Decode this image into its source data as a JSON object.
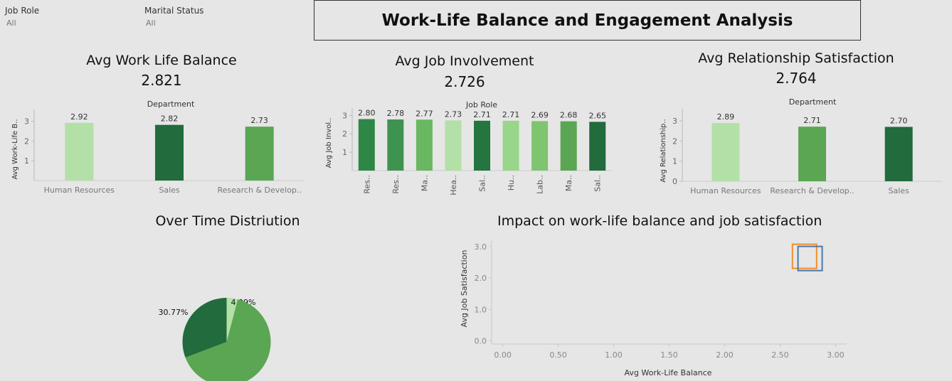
{
  "filters": {
    "job_role": {
      "label": "Job Role",
      "value": "All"
    },
    "marital_status": {
      "label": "Marital Status",
      "value": "All"
    }
  },
  "header": {
    "title": "Work-Life Balance and Engagement Analysis"
  },
  "kpis": {
    "work_life": {
      "title": "Avg Work Life Balance",
      "value": "2.821"
    },
    "job_involvement": {
      "title": "Avg Job Involvement",
      "value": "2.726"
    },
    "relationship": {
      "title": "Avg Relationship Satisfaction",
      "value": "2.764"
    }
  },
  "sections": {
    "overtime_title": "Over Time Distriution",
    "impact_title": "Impact on work-life balance and job satisfaction"
  },
  "colors": {
    "lightest": "#b3e0a6",
    "light": "#98d68a",
    "mid_light": "#7fc46f",
    "mid": "#6ab761",
    "medium": "#5aa652",
    "medium_dark": "#3f9350",
    "dark": "#2e8746",
    "darker": "#247540",
    "darkest": "#216b3d",
    "orange": "#f28e2b",
    "blue": "#4e79a7"
  },
  "chart_data": [
    {
      "id": "wlb",
      "type": "bar",
      "header": "Department",
      "ylabel": "Avg Work-Life B..",
      "categories": [
        "Human Resources",
        "Sales",
        "Research & Develop.."
      ],
      "values": [
        2.92,
        2.82,
        2.73
      ],
      "labels": [
        "2.92",
        "2.82",
        "2.73"
      ],
      "yticks": [
        1,
        2,
        3
      ],
      "ylim": [
        0,
        3.6
      ],
      "colors": [
        "#b3e0a6",
        "#216b3d",
        "#5aa652"
      ]
    },
    {
      "id": "ji",
      "type": "bar",
      "header": "Job Role",
      "ylabel": "Avg Job Invol..",
      "categories": [
        "Res..",
        "Res..",
        "Ma..",
        "Hea..",
        "Sal..",
        "Hu..",
        "Lab..",
        "Ma..",
        "Sal.."
      ],
      "values": [
        2.8,
        2.78,
        2.77,
        2.73,
        2.71,
        2.71,
        2.69,
        2.68,
        2.65
      ],
      "labels": [
        "2.80",
        "2.78",
        "2.77",
        "2.73",
        "2.71",
        "2.71",
        "2.69",
        "2.68",
        "2.65"
      ],
      "yticks": [
        1,
        2,
        3
      ],
      "ylim": [
        0,
        3.4
      ],
      "colors": [
        "#2e8746",
        "#3f9350",
        "#6ab761",
        "#b3e0a6",
        "#247540",
        "#98d68a",
        "#7fc46f",
        "#5aa652",
        "#216b3d"
      ]
    },
    {
      "id": "rs",
      "type": "bar",
      "header": "Department",
      "ylabel": "Avg Relationship..",
      "categories": [
        "Human Resources",
        "Research & Develop..",
        "Sales"
      ],
      "values": [
        2.89,
        2.71,
        2.7
      ],
      "labels": [
        "2.89",
        "2.71",
        "2.70"
      ],
      "yticks": [
        0,
        1,
        2,
        3
      ],
      "ylim": [
        0,
        3.6
      ],
      "colors": [
        "#b3e0a6",
        "#5aa652",
        "#216b3d"
      ]
    },
    {
      "id": "overtime",
      "type": "pie",
      "slices": [
        {
          "value": 4.09,
          "label": "4.09%",
          "color": "#b3e0a6"
        },
        {
          "value": 65.14,
          "label": "65.14%",
          "color": "#5aa652"
        },
        {
          "value": 30.77,
          "label": "30.77%",
          "color": "#216b3d"
        }
      ]
    },
    {
      "id": "impact",
      "type": "scatter",
      "xlabel": "Avg Work-Life Balance",
      "ylabel": "Avg Job Satisfaction",
      "xlim": [
        -0.1,
        3.1
      ],
      "ylim": [
        -0.1,
        3.2
      ],
      "xticks": [
        "0.00",
        "0.50",
        "1.00",
        "1.50",
        "2.00",
        "2.50",
        "3.00"
      ],
      "yticks": [
        "0.0",
        "1.0",
        "2.0",
        "3.0"
      ],
      "points": [
        {
          "x": 2.72,
          "y": 2.69,
          "color": "#f28e2b"
        },
        {
          "x": 2.77,
          "y": 2.62,
          "color": "#4e79a7"
        }
      ]
    }
  ]
}
